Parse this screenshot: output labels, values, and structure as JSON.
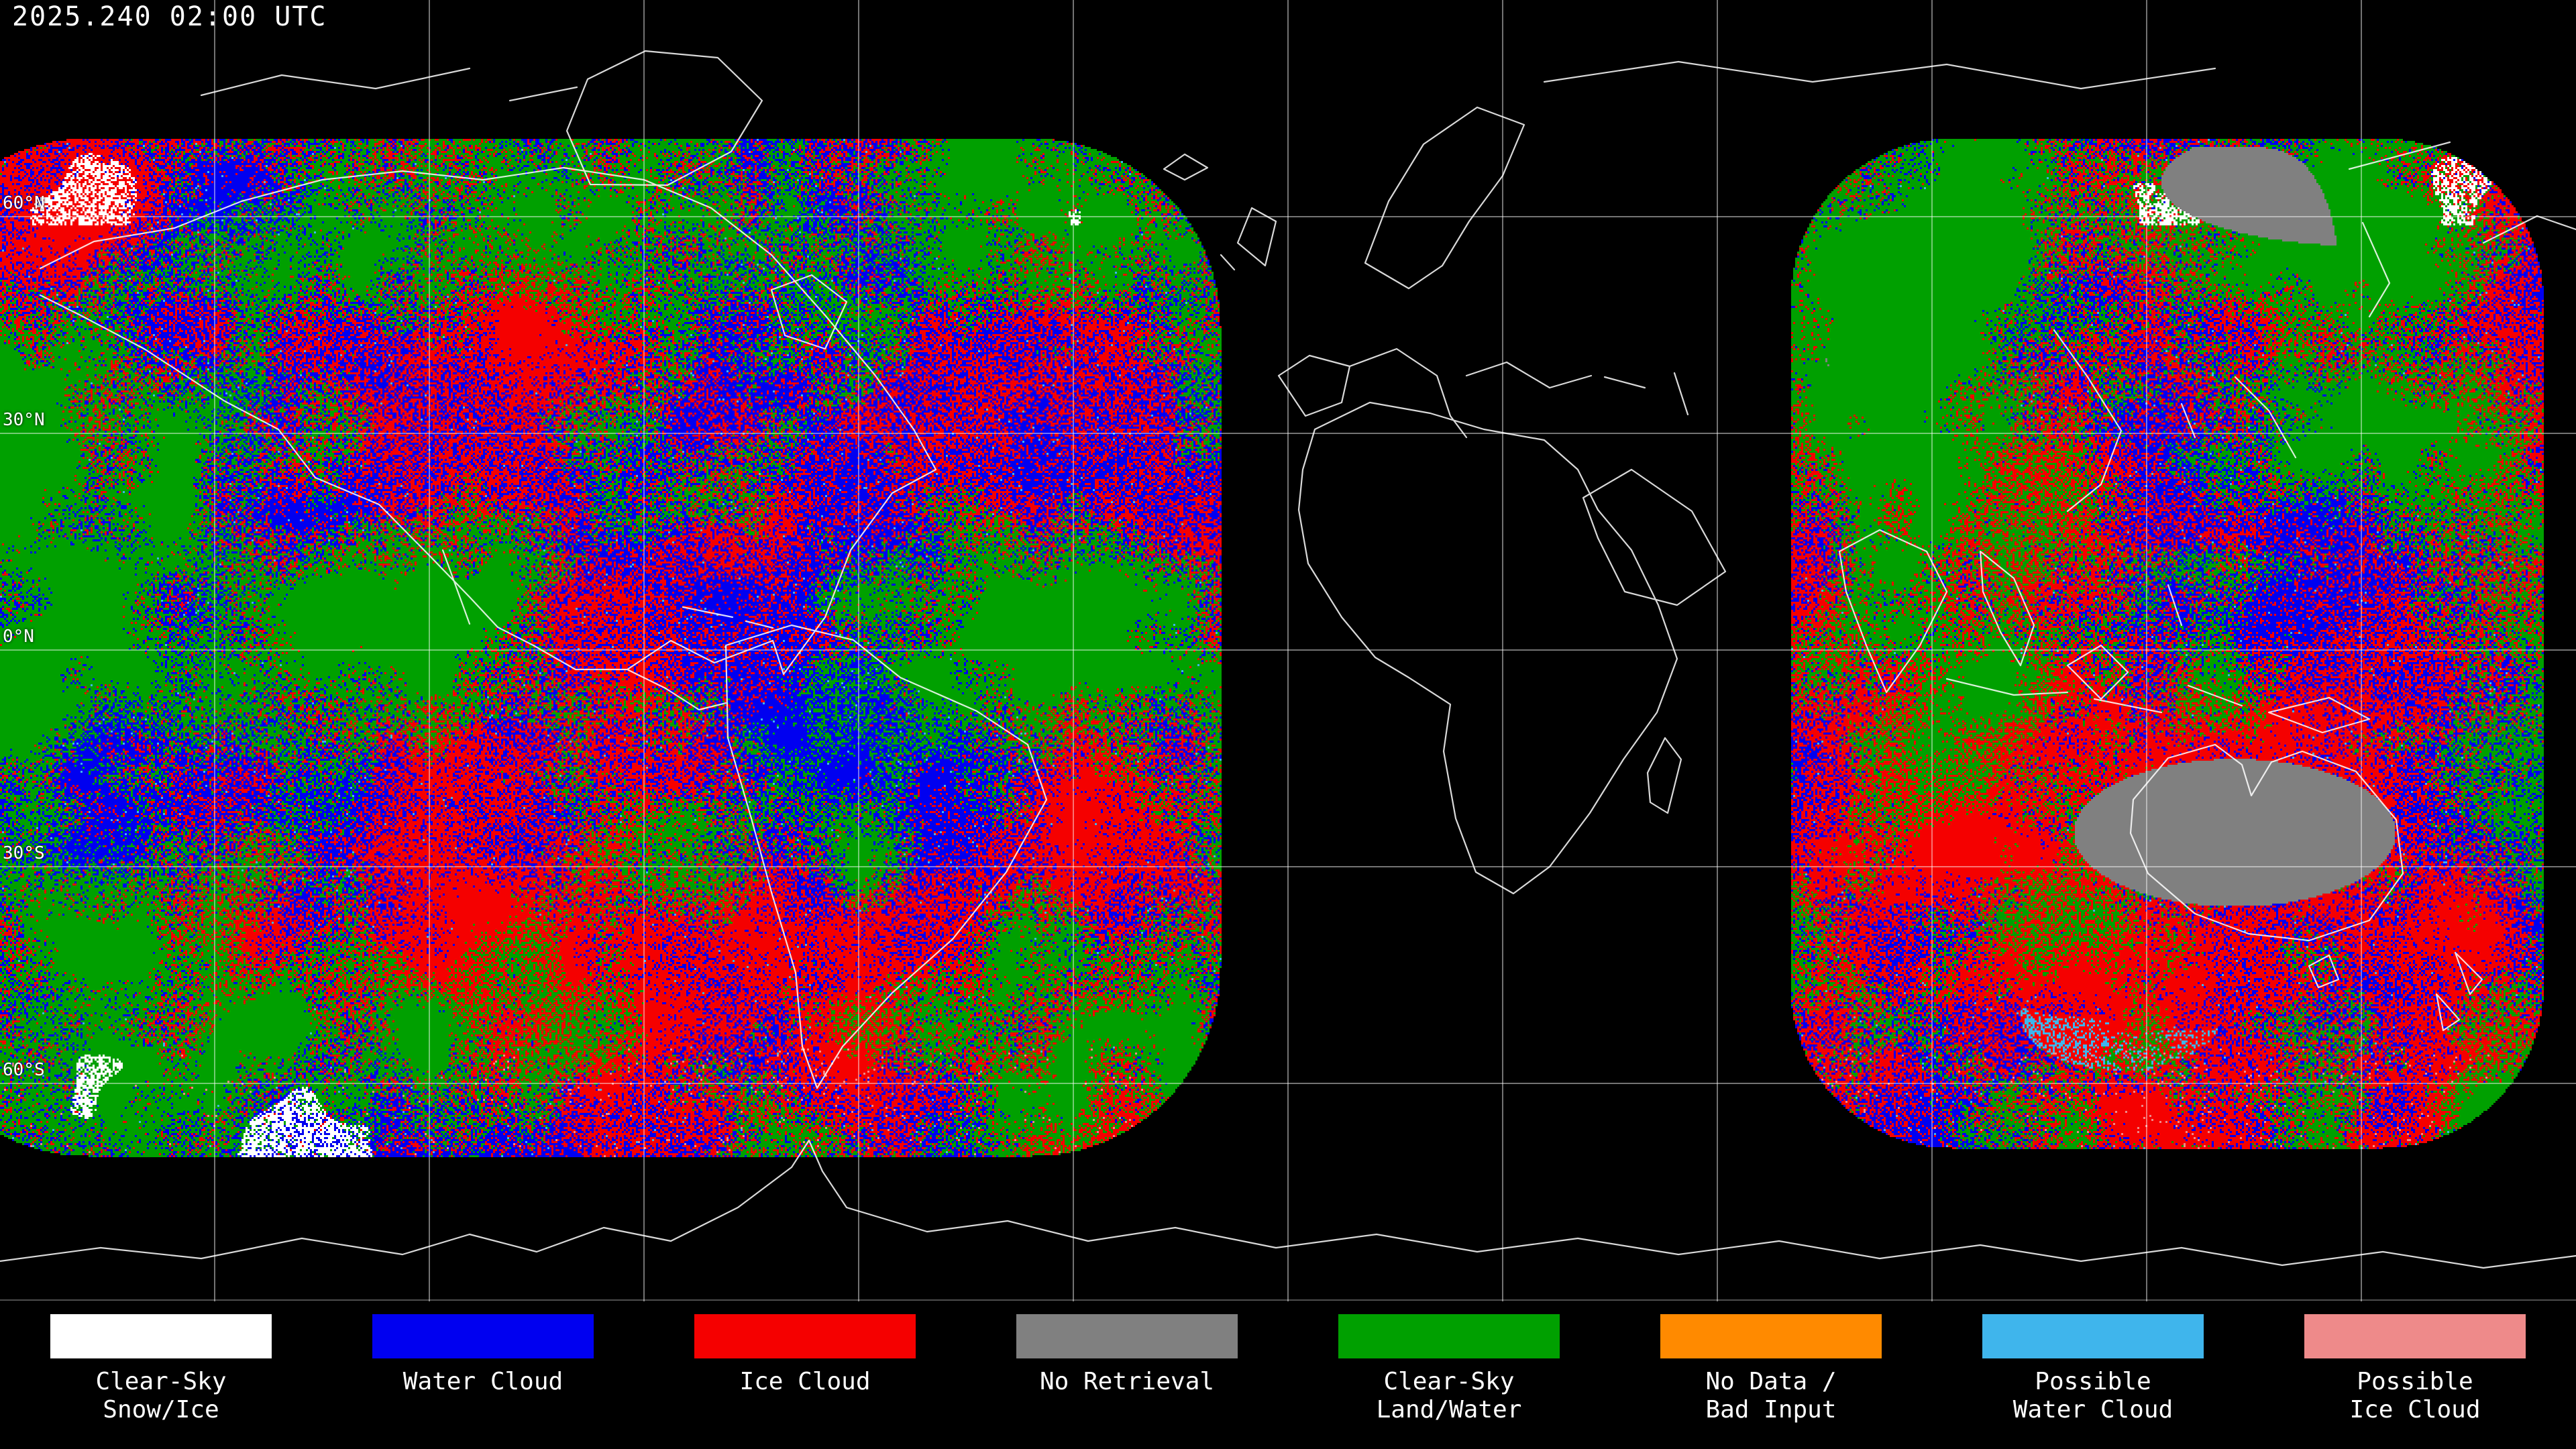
{
  "header": {
    "timestamp": "2025.240 02:00 UTC"
  },
  "map": {
    "background_color": "#000000",
    "coastline_color": "#FFFFFF",
    "graticule_color": "#9C9C9C",
    "lat_labels": [
      {
        "text": "60°N"
      },
      {
        "text": "30°N"
      },
      {
        "text": "0°N"
      },
      {
        "text": "30°S"
      },
      {
        "text": "60°S"
      }
    ]
  },
  "legend": {
    "items": [
      {
        "id": "snow_ice",
        "line1": "Clear-Sky",
        "line2": "Snow/Ice",
        "color": "#FFFFFF"
      },
      {
        "id": "water_cloud",
        "line1": "Water Cloud",
        "line2": "",
        "color": "#0000F0"
      },
      {
        "id": "ice_cloud",
        "line1": "Ice Cloud",
        "line2": "",
        "color": "#F50000"
      },
      {
        "id": "no_retrieval",
        "line1": "No Retrieval",
        "line2": "",
        "color": "#808080"
      },
      {
        "id": "clear_sky",
        "line1": "Clear-Sky",
        "line2": "Land/Water",
        "color": "#00A000"
      },
      {
        "id": "no_data",
        "line1": "No Data /",
        "line2": "Bad Input",
        "color": "#FF8A00"
      },
      {
        "id": "possible_water",
        "line1": "Possible",
        "line2": "Water Cloud",
        "color": "#3FB5EC"
      },
      {
        "id": "possible_ice",
        "line1": "Possible",
        "line2": "Ice Cloud",
        "color": "#EE8A8A"
      }
    ]
  }
}
